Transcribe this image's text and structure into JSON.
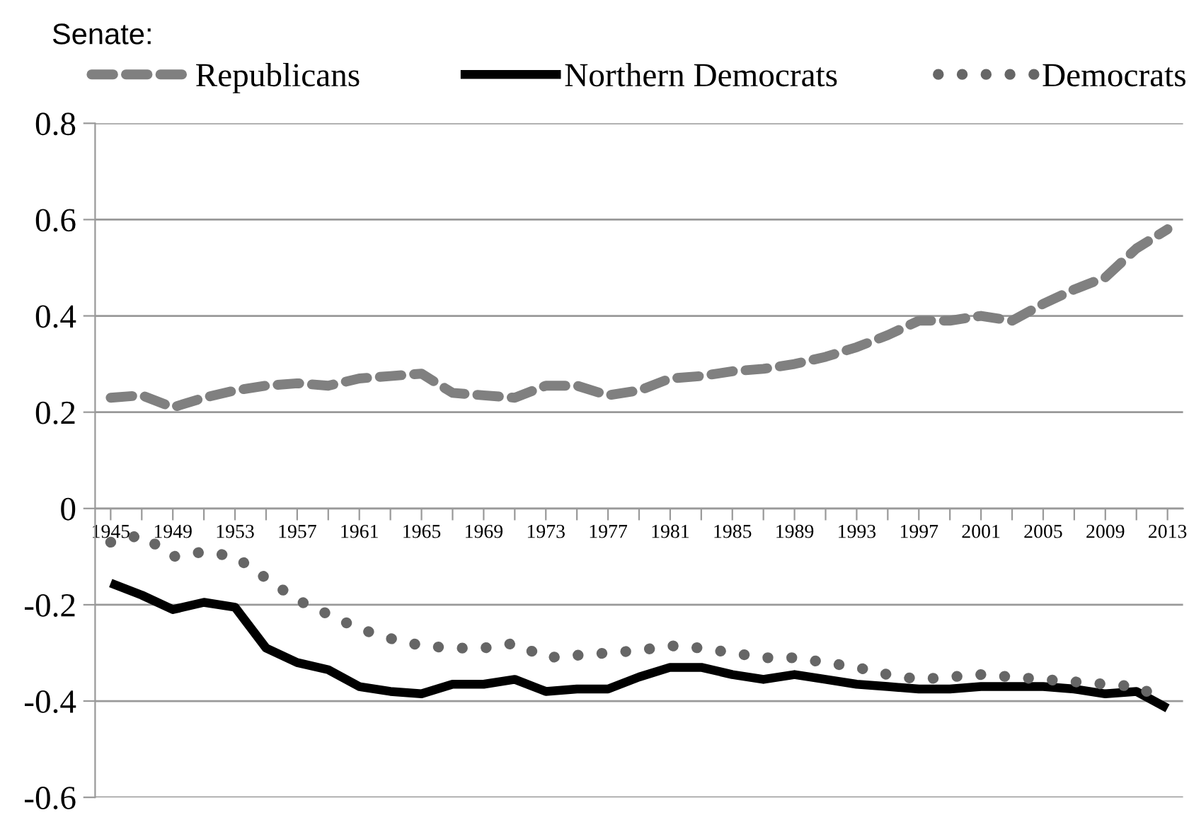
{
  "chart_data": {
    "type": "line",
    "title": "Senate:",
    "categories": [
      "1945",
      null,
      "1949",
      null,
      "1953",
      null,
      "1957",
      null,
      "1961",
      null,
      "1965",
      null,
      "1969",
      null,
      "1973",
      null,
      "1977",
      null,
      "1981",
      null,
      "1985",
      null,
      "1989",
      null,
      "1993",
      null,
      "1997",
      null,
      "2001",
      null,
      "2005",
      null,
      "2009",
      null,
      "2013"
    ],
    "series": [
      {
        "name": "Republicans",
        "color": "#808080",
        "line_style": "dashed",
        "values": [
          0.23,
          0.235,
          0.21,
          0.23,
          0.245,
          0.255,
          0.26,
          0.255,
          0.27,
          0.275,
          0.28,
          0.24,
          0.235,
          0.23,
          0.255,
          0.255,
          0.235,
          0.245,
          0.27,
          0.275,
          0.285,
          0.29,
          0.3,
          0.315,
          0.335,
          0.36,
          0.39,
          0.39,
          0.4,
          0.39,
          0.425,
          0.455,
          0.48,
          0.54,
          0.58
        ]
      },
      {
        "name": "Northern Democrats",
        "color": "#000000",
        "line_style": "solid",
        "values": [
          -0.155,
          -0.18,
          -0.21,
          -0.195,
          -0.205,
          -0.29,
          -0.32,
          -0.335,
          -0.37,
          -0.38,
          -0.385,
          -0.365,
          -0.365,
          -0.355,
          -0.38,
          -0.375,
          -0.375,
          -0.35,
          -0.33,
          -0.33,
          -0.345,
          -0.355,
          -0.345,
          -0.355,
          -0.365,
          -0.37,
          -0.375,
          -0.375,
          -0.37,
          -0.37,
          -0.37,
          -0.375,
          -0.385,
          -0.38,
          -0.415
        ]
      },
      {
        "name": "Democrats",
        "color": "#666666",
        "line_style": "dotted",
        "values": [
          -0.07,
          -0.055,
          -0.1,
          -0.09,
          -0.1,
          -0.145,
          -0.19,
          -0.22,
          -0.25,
          -0.27,
          -0.285,
          -0.29,
          -0.29,
          -0.28,
          -0.31,
          -0.305,
          -0.3,
          -0.295,
          -0.285,
          -0.29,
          -0.3,
          -0.31,
          -0.31,
          -0.32,
          -0.33,
          -0.345,
          -0.355,
          -0.35,
          -0.345,
          -0.35,
          -0.355,
          -0.36,
          -0.365,
          -0.37,
          -0.4
        ]
      }
    ],
    "ylim": [
      -0.6,
      0.8
    ],
    "yticks": [
      -0.6,
      -0.4,
      -0.2,
      0,
      0.2,
      0.4,
      0.6,
      0.8
    ],
    "grid": "y",
    "legend": "top",
    "marker": "none"
  }
}
